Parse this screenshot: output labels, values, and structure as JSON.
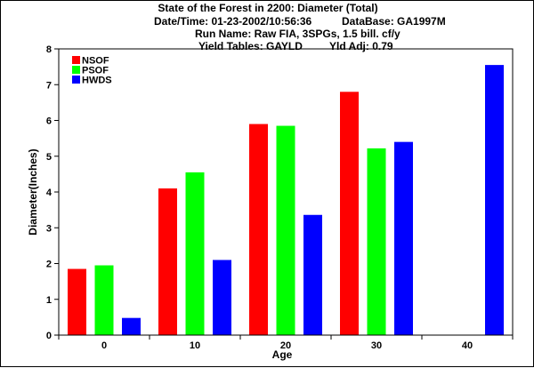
{
  "header": {
    "title": "State of the Forest in 2200: Diameter (Total)",
    "datetime": "Date/Time: 01-23-2002/10:56:36",
    "database": "DataBase: GA1997M",
    "run_name": "Run Name: Raw FIA, 3SPGs, 1.5 bill. cf/y",
    "yield_tables": "Yield Tables: GAYLD",
    "yield_adj": "Yld Adj: 0.79"
  },
  "chart_data": {
    "type": "bar",
    "xlabel": "Age",
    "ylabel": "Diameter(Inches)",
    "categories": [
      "0",
      "10",
      "20",
      "30",
      "40"
    ],
    "ylim": [
      0,
      8
    ],
    "yticks": [
      "0",
      "1",
      "2",
      "3",
      "4",
      "5",
      "6",
      "7",
      "8"
    ],
    "grid": false,
    "legend_position": "top-left",
    "series": [
      {
        "name": "NSOF",
        "color": "#ff0000",
        "values": [
          1.85,
          4.1,
          5.9,
          6.8,
          null
        ]
      },
      {
        "name": "PSOF",
        "color": "#00ff00",
        "values": [
          1.95,
          4.55,
          5.85,
          5.22,
          null
        ]
      },
      {
        "name": "HWDS",
        "color": "#0000ff",
        "values": [
          0.48,
          2.1,
          3.36,
          5.4,
          7.55
        ]
      }
    ]
  }
}
